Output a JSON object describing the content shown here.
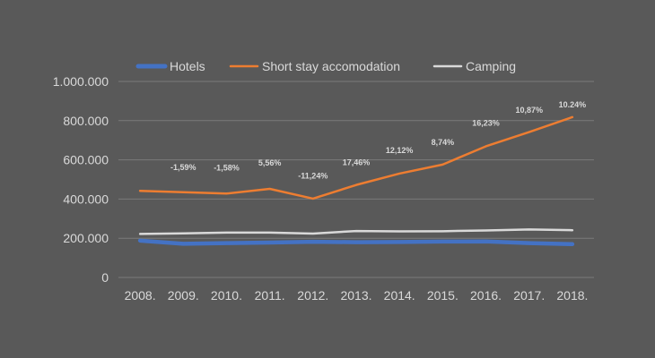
{
  "chart_data": {
    "type": "line",
    "categories": [
      "2008.",
      "2009.",
      "2010.",
      "2011.",
      "2012.",
      "2013.",
      "2014.",
      "2015.",
      "2016.",
      "2017.",
      "2018."
    ],
    "y_ticks": [
      "0",
      "200.000",
      "400.000",
      "600.000",
      "800.000",
      "1.000.000"
    ],
    "ylim": [
      0,
      1000000
    ],
    "grid": true,
    "legend_position": "top",
    "series": [
      {
        "name": "Hotels",
        "color": "#4472c4",
        "values": [
          188000,
          172000,
          175000,
          178000,
          182000,
          180000,
          181000,
          183000,
          184000,
          175000,
          170000
        ]
      },
      {
        "name": "Short stay accomodation",
        "color": "#ed7d31",
        "values": [
          442000,
          435000,
          428000,
          452000,
          402000,
          472000,
          530000,
          576000,
          669000,
          742000,
          818000
        ]
      },
      {
        "name": "Camping",
        "color": "#d9d9d9",
        "values": [
          222000,
          225000,
          229000,
          229000,
          224000,
          237000,
          235000,
          236000,
          240000,
          245000,
          241000
        ]
      }
    ],
    "annotations": [
      "-1,59%",
      "-1,58%",
      "5,56%",
      "-11,24%",
      "17,46%",
      "12,12%",
      "8,74%",
      "16,23%",
      "10,87%",
      "10.24%"
    ],
    "annotation_positions": [
      {
        "category": "2009.",
        "value": 548000
      },
      {
        "category": "2010.",
        "value": 545000
      },
      {
        "category": "2011.",
        "value": 570000
      },
      {
        "category": "2012.",
        "value": 505000
      },
      {
        "category": "2013.",
        "value": 572000
      },
      {
        "category": "2014.",
        "value": 635000
      },
      {
        "category": "2015.",
        "value": 675000
      },
      {
        "category": "2016.",
        "value": 775000
      },
      {
        "category": "2017.",
        "value": 840000
      },
      {
        "category": "2018.",
        "value": 868000
      }
    ]
  }
}
